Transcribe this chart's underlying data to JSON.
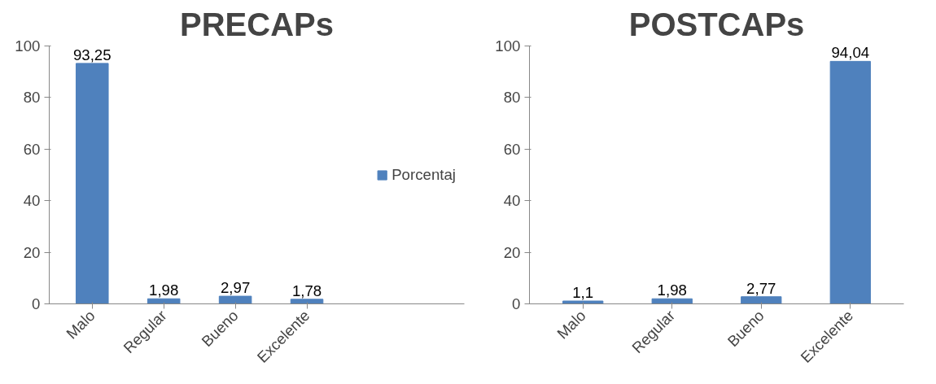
{
  "chart_data": [
    {
      "type": "bar",
      "title": "PRECAPs",
      "categories": [
        "Malo",
        "Regular",
        "Bueno",
        "Excelente"
      ],
      "series": [
        {
          "name": "Porcentaj",
          "color": "#4f81bd",
          "values": [
            93.25,
            1.98,
            2.97,
            1.78
          ]
        }
      ],
      "value_labels": [
        "93,25",
        "1,98",
        "2,97",
        "1,78"
      ],
      "ylim": [
        0,
        100
      ],
      "yticks": [
        0,
        20,
        40,
        60,
        80,
        100
      ],
      "grid": false,
      "legend": "right"
    },
    {
      "type": "bar",
      "title": "POSTCAPs",
      "categories": [
        "Malo",
        "Regular",
        "Bueno",
        "Excelente"
      ],
      "series": [
        {
          "color": "#4f81bd",
          "values": [
            1.1,
            1.98,
            2.77,
            94.04
          ]
        }
      ],
      "value_labels": [
        "1,1",
        "1,98",
        "2,77",
        "94,04"
      ],
      "ylim": [
        0,
        100
      ],
      "yticks": [
        0,
        20,
        40,
        60,
        80,
        100
      ],
      "grid": false,
      "legend": false
    }
  ]
}
